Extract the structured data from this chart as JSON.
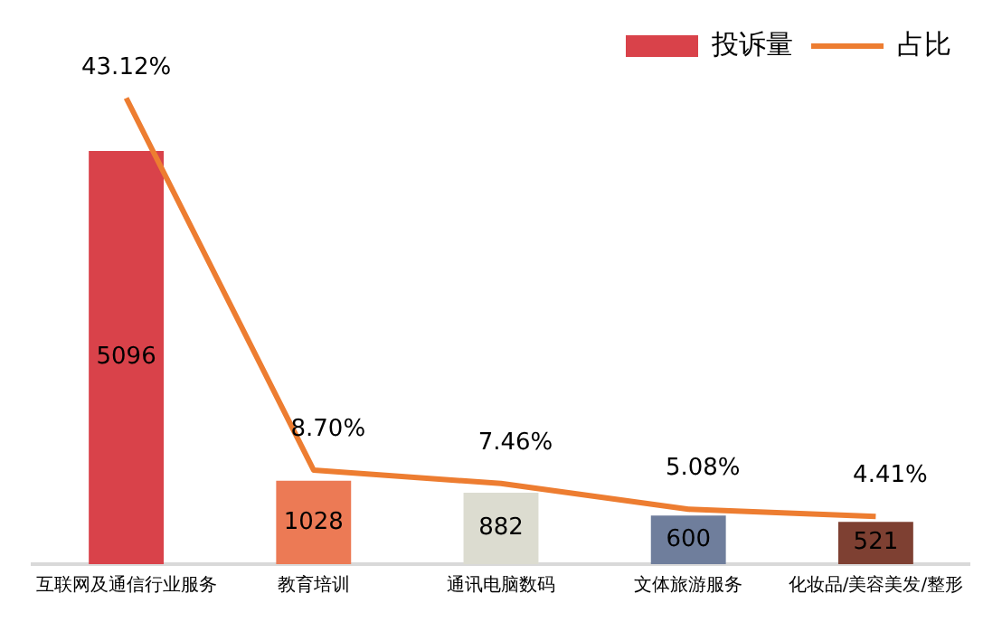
{
  "chart_data": {
    "type": "bar",
    "categories": [
      "互联网及通信行业服务",
      "教育培训",
      "通讯电脑数码",
      "文体旅游服务",
      "化妆品/美容美发/整形"
    ],
    "series": [
      {
        "name": "投诉量",
        "color": "#d9424a",
        "colors": [
          "#d9424a",
          "#ec7a55",
          "#dcdcd0",
          "#6f7e9c",
          "#7e4032"
        ],
        "values": [
          5096,
          1028,
          882,
          600,
          521
        ]
      },
      {
        "name": "占比",
        "type": "line",
        "axis": "y2",
        "color": "#ed7d31",
        "values": [
          43.12,
          8.7,
          7.46,
          5.08,
          4.41
        ],
        "value_labels": [
          "43.12%",
          "8.70%",
          "7.46%",
          "5.08%",
          "4.41%"
        ]
      }
    ],
    "data_labels": true,
    "legend": "top right",
    "grid": false,
    "marker": "none"
  }
}
